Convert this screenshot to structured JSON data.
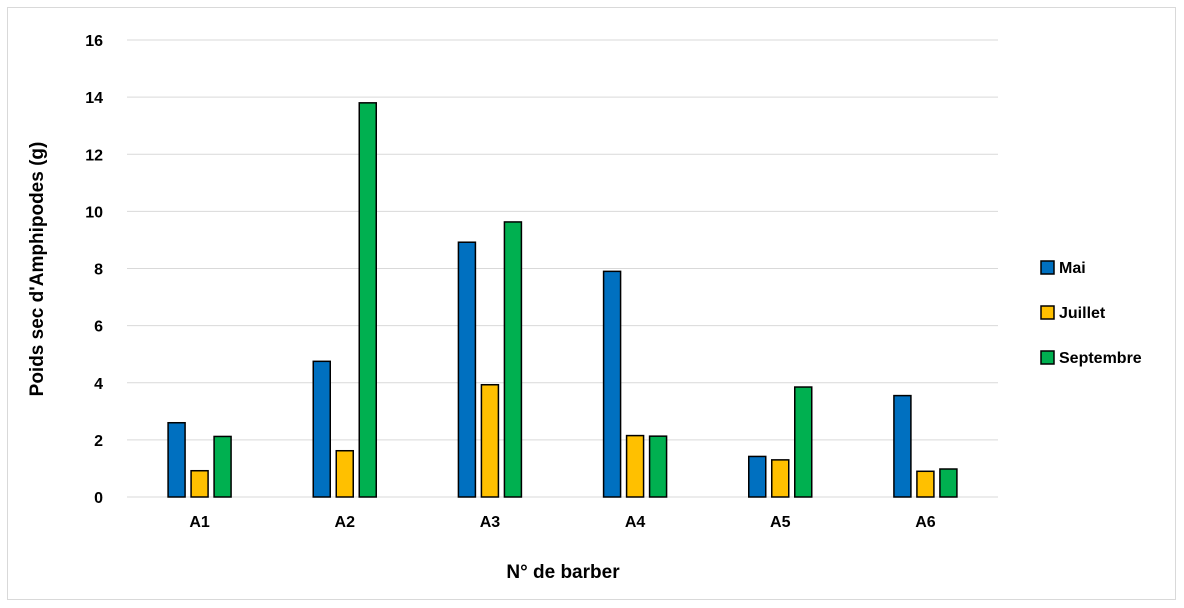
{
  "chart_data": {
    "type": "bar",
    "categories": [
      "A1",
      "A2",
      "A3",
      "A4",
      "A5",
      "A6"
    ],
    "series": [
      {
        "name": "Mai",
        "color": "#0070c0",
        "values": [
          2.6,
          4.75,
          8.92,
          7.9,
          1.42,
          3.55
        ]
      },
      {
        "name": "Juillet",
        "color": "#ffc000",
        "values": [
          0.92,
          1.62,
          3.93,
          2.15,
          1.3,
          0.9
        ]
      },
      {
        "name": "Septembre",
        "color": "#00b050",
        "values": [
          2.12,
          13.8,
          9.63,
          2.13,
          3.85,
          0.98
        ]
      }
    ],
    "title": "",
    "xlabel": "N° de barber",
    "ylabel": "Poids sec d'Amphipodes (g)",
    "ylim": [
      0,
      16
    ],
    "yticks": [
      0,
      2,
      4,
      6,
      8,
      10,
      12,
      14,
      16
    ],
    "grid": true,
    "legend": "right"
  }
}
